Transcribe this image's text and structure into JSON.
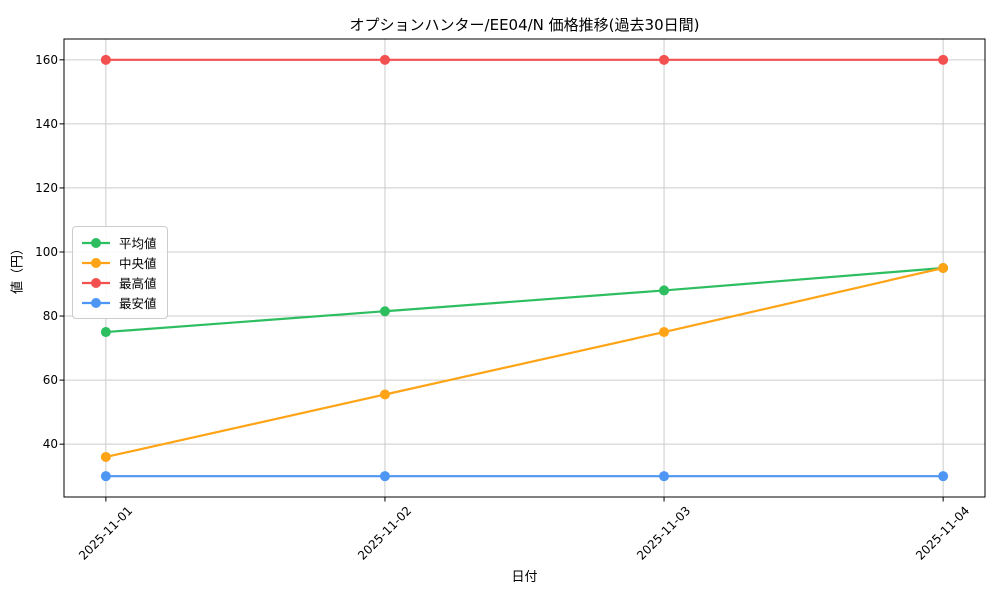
{
  "title": "オプションハンター/EE04/N 価格推移(過去30日間)",
  "chart_data": {
    "type": "line",
    "title": "オプションハンター/EE04/N 価格推移(過去30日間)",
    "xlabel": "日付",
    "ylabel": "値（円）",
    "categories": [
      "2025-11-01",
      "2025-11-02",
      "2025-11-03",
      "2025-11-04"
    ],
    "series": [
      {
        "name": "平均値",
        "color": "#2dbe60",
        "values": [
          75,
          81.5,
          88,
          95
        ]
      },
      {
        "name": "中央値",
        "color": "#ffa317",
        "values": [
          36,
          55.5,
          75,
          95
        ]
      },
      {
        "name": "最高値",
        "color": "#f35150",
        "values": [
          160,
          160,
          160,
          160
        ]
      },
      {
        "name": "最安値",
        "color": "#4d96f3",
        "values": [
          30,
          30,
          30,
          30
        ]
      }
    ],
    "yticks": [
      40,
      60,
      80,
      100,
      120,
      140,
      160
    ],
    "ytick_labels": [
      "40",
      "60",
      "80",
      "100",
      "120",
      "140",
      "160"
    ],
    "ylim": [
      23.5,
      166.5
    ],
    "xlim": [
      -0.15,
      3.15
    ],
    "grid": true,
    "legend_position": "center-left",
    "marker": "circle",
    "colors": {
      "grid": "#cccccc",
      "spine": "#000000",
      "background": "#ffffff",
      "legend_border": "#cccccc"
    }
  }
}
